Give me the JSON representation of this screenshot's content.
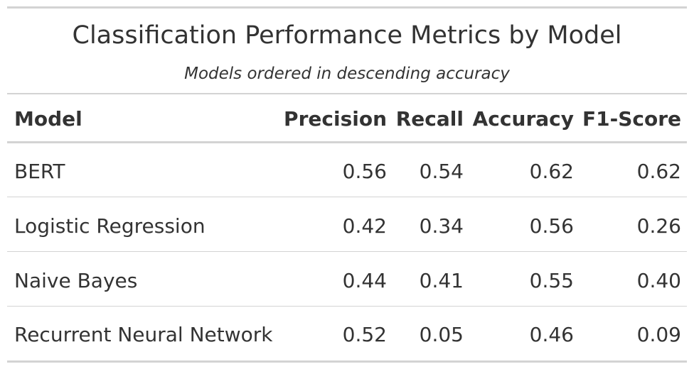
{
  "chart_data": {
    "type": "table",
    "title": "Classification Performance Metrics by Model",
    "subtitle": "Models ordered in descending accuracy",
    "columns": [
      "Model",
      "Precision",
      "Recall",
      "Accuracy",
      "F1-Score"
    ],
    "rows": [
      {
        "model": "BERT",
        "precision": "0.56",
        "recall": "0.54",
        "accuracy": "0.62",
        "f1": "0.62"
      },
      {
        "model": "Logistic Regression",
        "precision": "0.42",
        "recall": "0.34",
        "accuracy": "0.56",
        "f1": "0.26"
      },
      {
        "model": "Naive Bayes",
        "precision": "0.44",
        "recall": "0.41",
        "accuracy": "0.55",
        "f1": "0.40"
      },
      {
        "model": "Recurrent Neural Network",
        "precision": "0.52",
        "recall": "0.05",
        "accuracy": "0.46",
        "f1": "0.09"
      }
    ]
  }
}
